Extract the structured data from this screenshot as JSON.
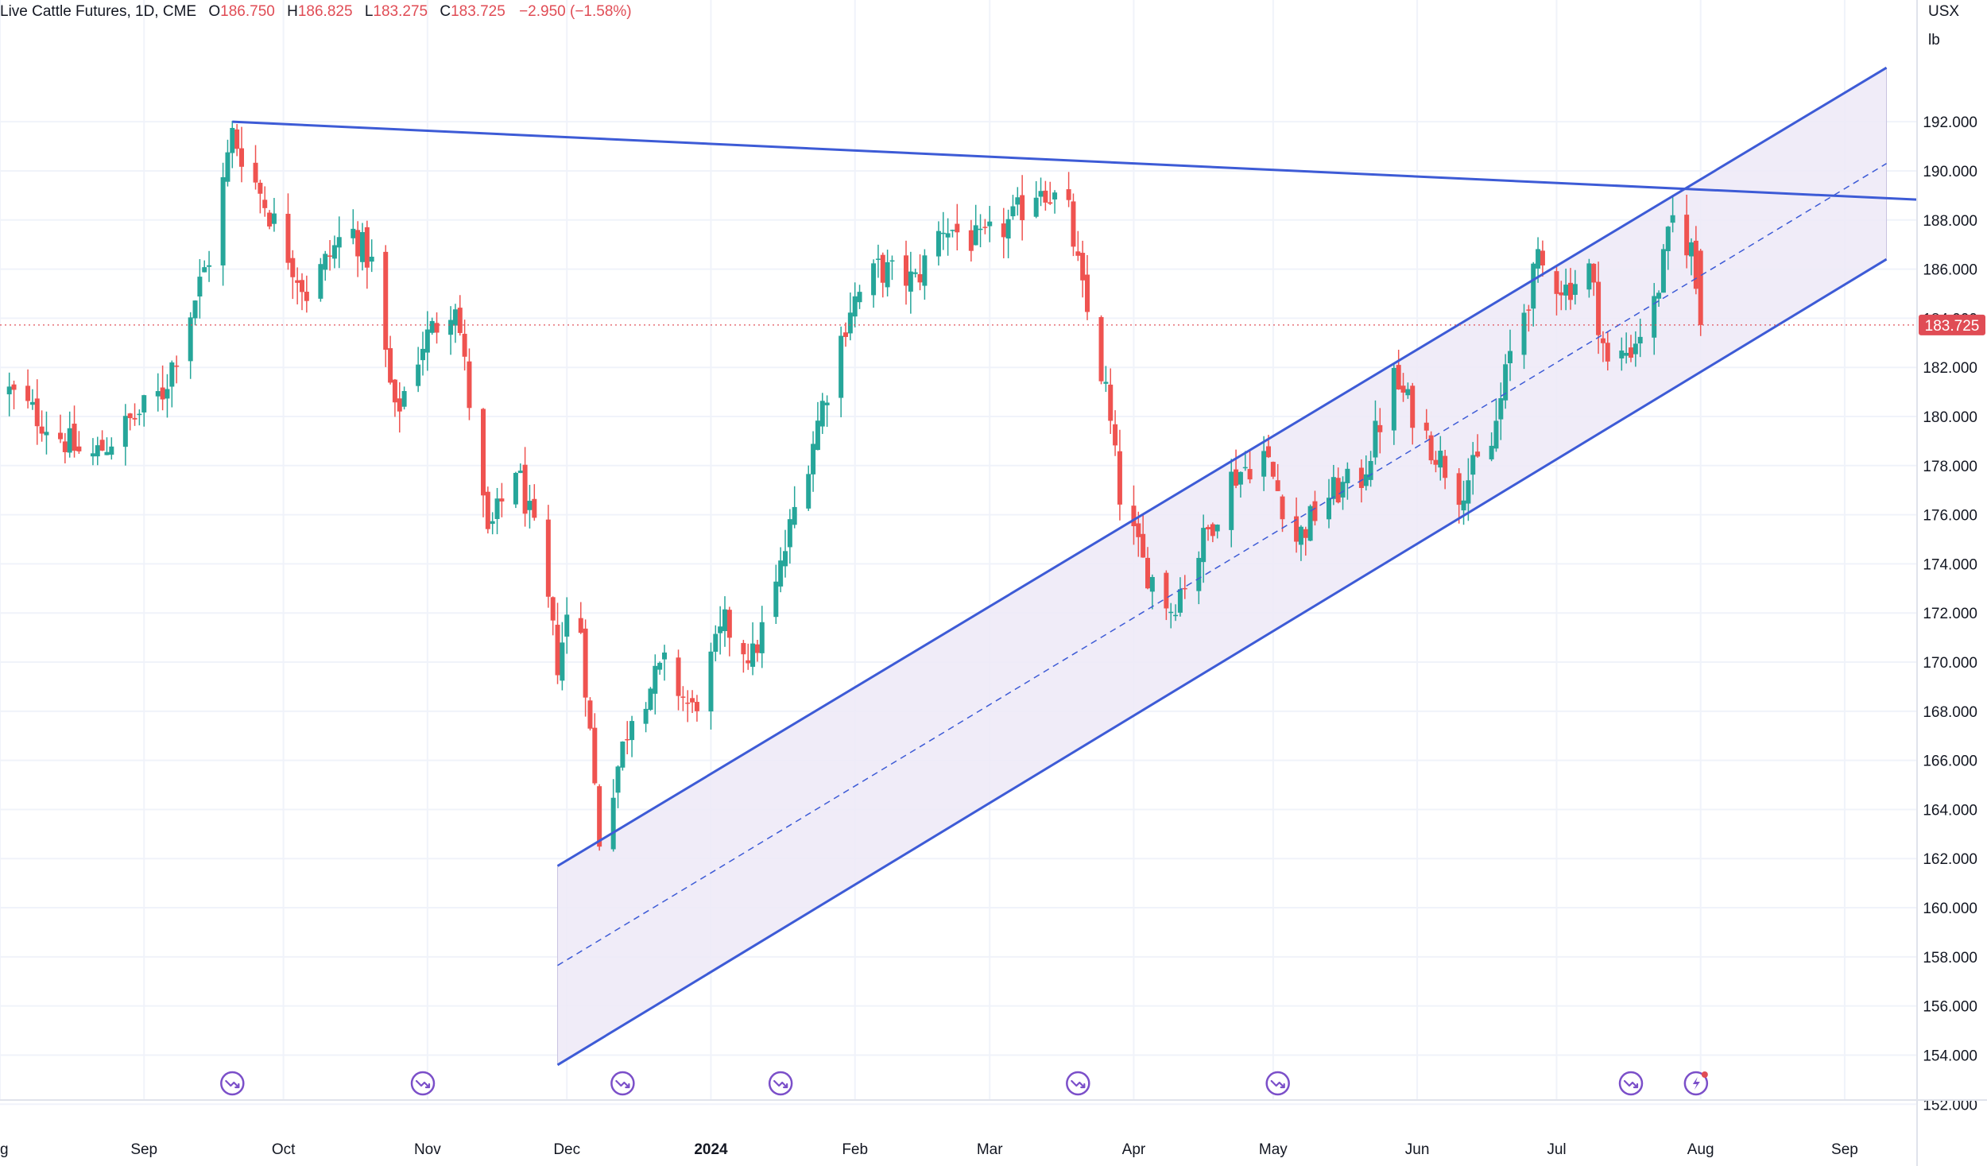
{
  "legend": {
    "symbol": "Live Cattle Futures, 1D, CME",
    "open_label": "O",
    "open": "186.750",
    "high_label": "H",
    "high": "186.825",
    "low_label": "L",
    "low": "183.275",
    "close_label": "C",
    "close": "183.725",
    "change": "−2.950 (−1.58%)"
  },
  "axis_units": {
    "currency": "USX",
    "measure": "lb"
  },
  "last_price_label": "183.725",
  "colors": {
    "up": "#26a69a",
    "down": "#ef5350",
    "trendline": "#3d5bd6",
    "channel_fill": "#ede9f7",
    "grid": "#f0f3fa",
    "axis_text": "#131722",
    "price_tag": "#e04c55",
    "event_icon": "#7b4fc9"
  },
  "chart_data": {
    "type": "candlestick",
    "title": "Live Cattle Futures, 1D, CME",
    "ylim": [
      151.2,
      195.5
    ],
    "y_ticks": [
      "152.000",
      "154.000",
      "156.000",
      "158.000",
      "160.000",
      "162.000",
      "164.000",
      "166.000",
      "168.000",
      "170.000",
      "172.000",
      "174.000",
      "176.000",
      "178.000",
      "180.000",
      "182.000",
      "184.000",
      "186.000",
      "188.000",
      "190.000",
      "192.000"
    ],
    "x_ticks": [
      {
        "label": "ug",
        "date": "2023-08-01"
      },
      {
        "label": "Sep",
        "date": "2023-09-01"
      },
      {
        "label": "Oct",
        "date": "2023-10-01"
      },
      {
        "label": "Nov",
        "date": "2023-11-01"
      },
      {
        "label": "Dec",
        "date": "2023-12-01"
      },
      {
        "label": "2024",
        "date": "2024-01-01",
        "bold": true
      },
      {
        "label": "Feb",
        "date": "2024-02-01"
      },
      {
        "label": "Mar",
        "date": "2024-03-01"
      },
      {
        "label": "Apr",
        "date": "2024-04-01"
      },
      {
        "label": "May",
        "date": "2024-05-01"
      },
      {
        "label": "Jun",
        "date": "2024-06-01"
      },
      {
        "label": "Jul",
        "date": "2024-07-01"
      },
      {
        "label": "Aug",
        "date": "2024-08-01"
      },
      {
        "label": "Sep",
        "date": "2024-09-01"
      }
    ],
    "x_range": [
      "2023-08-01",
      "2024-09-20"
    ],
    "anchors": [
      {
        "date": "2023-08-03",
        "price": 181.0
      },
      {
        "date": "2023-08-20",
        "price": 178.2
      },
      {
        "date": "2023-09-05",
        "price": 181.0
      },
      {
        "date": "2023-09-15",
        "price": 186.5
      },
      {
        "date": "2023-09-20",
        "price": 191.5
      },
      {
        "date": "2023-09-28",
        "price": 188.3
      },
      {
        "date": "2023-10-06",
        "price": 185.0
      },
      {
        "date": "2023-10-15",
        "price": 187.8
      },
      {
        "date": "2023-10-20",
        "price": 186.2
      },
      {
        "date": "2023-10-25",
        "price": 180.0
      },
      {
        "date": "2023-10-31",
        "price": 183.0
      },
      {
        "date": "2023-11-07",
        "price": 184.8
      },
      {
        "date": "2023-11-14",
        "price": 175.0
      },
      {
        "date": "2023-11-20",
        "price": 178.0
      },
      {
        "date": "2023-11-25",
        "price": 174.5
      },
      {
        "date": "2023-11-29",
        "price": 170.0
      },
      {
        "date": "2023-12-03",
        "price": 173.5
      },
      {
        "date": "2023-12-08",
        "price": 162.8
      },
      {
        "date": "2023-12-15",
        "price": 168.0
      },
      {
        "date": "2023-12-22",
        "price": 169.8
      },
      {
        "date": "2023-12-28",
        "price": 168.0
      },
      {
        "date": "2024-01-04",
        "price": 171.5
      },
      {
        "date": "2024-01-10",
        "price": 170.2
      },
      {
        "date": "2024-01-15",
        "price": 173.0
      },
      {
        "date": "2024-01-19",
        "price": 176.2
      },
      {
        "date": "2024-01-25",
        "price": 180.5
      },
      {
        "date": "2024-01-31",
        "price": 184.5
      },
      {
        "date": "2024-02-06",
        "price": 186.0
      },
      {
        "date": "2024-02-14",
        "price": 185.5
      },
      {
        "date": "2024-02-20",
        "price": 187.8
      },
      {
        "date": "2024-02-28",
        "price": 187.0
      },
      {
        "date": "2024-03-06",
        "price": 188.0
      },
      {
        "date": "2024-03-12",
        "price": 189.5
      },
      {
        "date": "2024-03-18",
        "price": 188.2
      },
      {
        "date": "2024-03-21",
        "price": 185.0
      },
      {
        "date": "2024-03-26",
        "price": 181.0
      },
      {
        "date": "2024-03-29",
        "price": 176.8
      },
      {
        "date": "2024-04-03",
        "price": 174.0
      },
      {
        "date": "2024-04-09",
        "price": 172.2
      },
      {
        "date": "2024-04-15",
        "price": 174.5
      },
      {
        "date": "2024-04-22",
        "price": 177.5
      },
      {
        "date": "2024-04-29",
        "price": 178.5
      },
      {
        "date": "2024-05-06",
        "price": 175.0
      },
      {
        "date": "2024-05-13",
        "price": 176.8
      },
      {
        "date": "2024-05-20",
        "price": 177.5
      },
      {
        "date": "2024-05-27",
        "price": 181.5
      },
      {
        "date": "2024-06-03",
        "price": 179.2
      },
      {
        "date": "2024-06-10",
        "price": 177.0
      },
      {
        "date": "2024-06-17",
        "price": 178.8
      },
      {
        "date": "2024-06-21",
        "price": 182.5
      },
      {
        "date": "2024-06-27",
        "price": 186.2
      },
      {
        "date": "2024-07-03",
        "price": 185.2
      },
      {
        "date": "2024-07-08",
        "price": 186.0
      },
      {
        "date": "2024-07-12",
        "price": 182.0
      },
      {
        "date": "2024-07-17",
        "price": 182.8
      },
      {
        "date": "2024-07-22",
        "price": 184.5
      },
      {
        "date": "2024-07-26",
        "price": 188.0
      },
      {
        "date": "2024-07-30",
        "price": 186.8
      },
      {
        "date": "2024-08-01",
        "price": 183.725
      }
    ],
    "last_candle": {
      "date": "2024-08-01",
      "open": 186.75,
      "high": 186.825,
      "low": 183.275,
      "close": 183.725
    },
    "last_price": 183.725,
    "trendline": {
      "from": {
        "date": "2023-09-20",
        "price": 192.0
      },
      "to": {
        "date": "2024-09-20",
        "price": 188.8
      }
    },
    "channel": {
      "start_date": "2023-11-29",
      "end_date": "2024-09-10",
      "upper_start": 161.7,
      "upper_end": 194.2,
      "lower_start": 153.6,
      "lower_end": 186.4
    },
    "event_markers": [
      "2023-09-20",
      "2023-10-31",
      "2023-12-13",
      "2024-01-16",
      "2024-03-20",
      "2024-05-02",
      "2024-07-17",
      "2024-07-31"
    ]
  }
}
